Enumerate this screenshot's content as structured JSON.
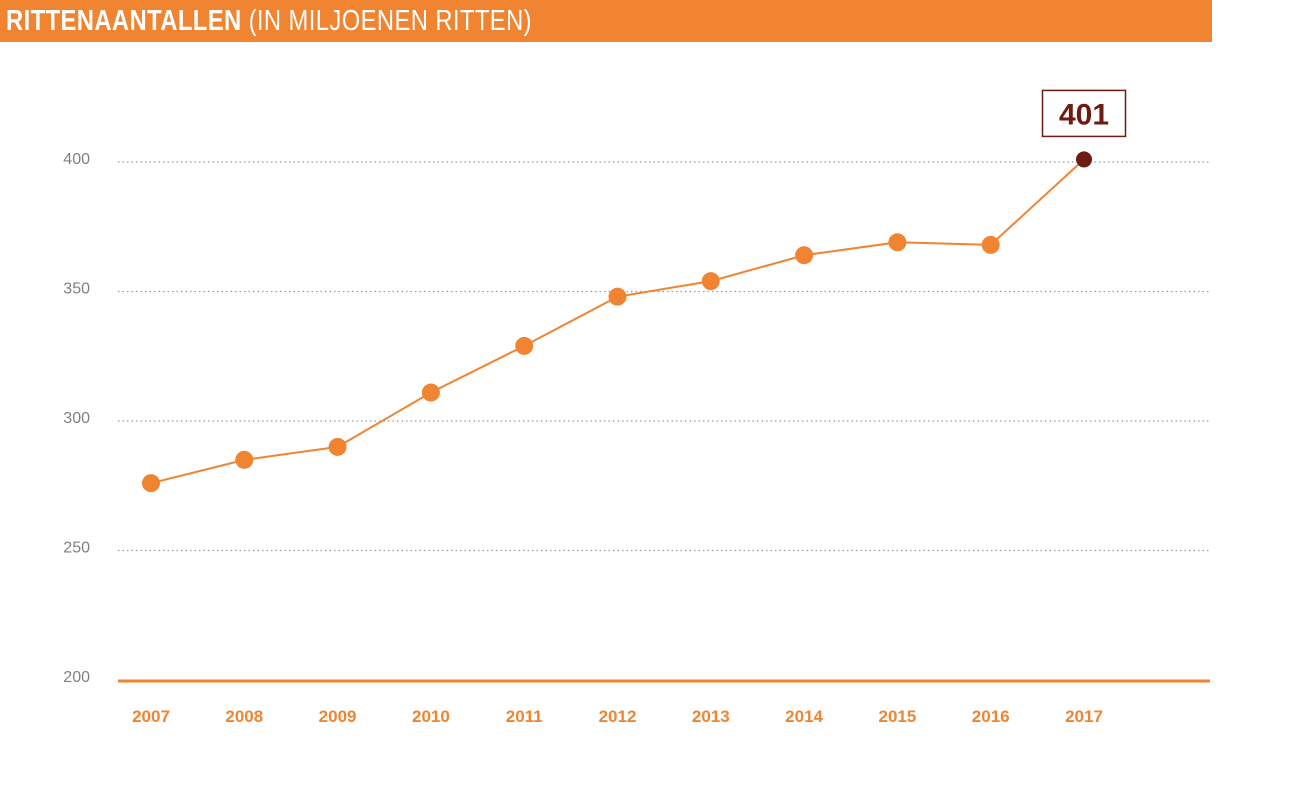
{
  "header": {
    "title_bold": "RITTENAANTALLEN",
    "title_rest": " (IN MILJOENEN RITTEN)"
  },
  "colors": {
    "accent": "#f08431",
    "highlight": "#6e1b13",
    "grid": "#9a9a9a",
    "tick_text": "#808080"
  },
  "chart_data": {
    "type": "line",
    "title": "RITTENAANTALLEN (IN MILJOENEN RITTEN)",
    "xlabel": "",
    "ylabel": "",
    "ylim": [
      200,
      400
    ],
    "yticks": [
      200,
      250,
      300,
      350,
      400
    ],
    "grid": "horizontal-dotted",
    "categories": [
      "2007",
      "2008",
      "2009",
      "2010",
      "2011",
      "2012",
      "2013",
      "2014",
      "2015",
      "2016",
      "2017"
    ],
    "series": [
      {
        "values": [
          276,
          285,
          290,
          311,
          329,
          348,
          354,
          364,
          369,
          368,
          401
        ]
      }
    ],
    "annotations": [
      {
        "category": "2017",
        "label": "401",
        "style": "boxed-highlight"
      }
    ]
  }
}
